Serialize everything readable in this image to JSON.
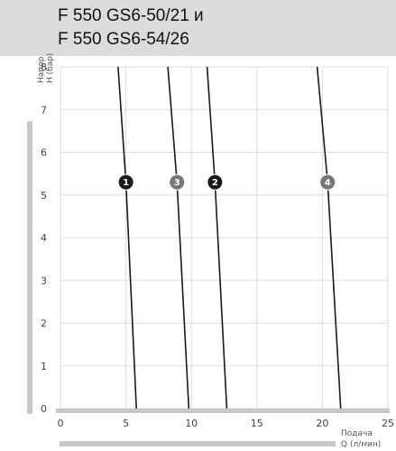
{
  "header": {
    "title_line1": "F 550 GS6-50/21 и",
    "title_line2": "F 550 GS6-54/26"
  },
  "chart_data": {
    "type": "line",
    "ylabel_line1": "Напор",
    "ylabel_line2": "H (бар)",
    "xlabel_line1": "Подача",
    "xlabel_line2": "Q (л/мин)",
    "xlim": [
      0,
      25
    ],
    "ylim": [
      0,
      8
    ],
    "x_ticks": [
      0,
      5,
      10,
      15,
      20,
      25
    ],
    "y_ticks": [
      0,
      1,
      2,
      3,
      4,
      5,
      6,
      7,
      8
    ],
    "grid": true,
    "series": [
      {
        "label": "1",
        "marker_color": "#1a1a1a",
        "points": [
          [
            4.4,
            8
          ],
          [
            5.0,
            5.3
          ],
          [
            5.8,
            0
          ]
        ]
      },
      {
        "label": "3",
        "marker_color": "#777777",
        "points": [
          [
            8.2,
            8
          ],
          [
            8.9,
            5.3
          ],
          [
            9.8,
            0
          ]
        ]
      },
      {
        "label": "2",
        "marker_color": "#1a1a1a",
        "points": [
          [
            11.2,
            8
          ],
          [
            11.8,
            5.3
          ],
          [
            12.7,
            0
          ]
        ]
      },
      {
        "label": "4",
        "marker_color": "#777777",
        "points": [
          [
            19.6,
            8
          ],
          [
            20.4,
            5.3
          ],
          [
            21.4,
            0
          ]
        ]
      }
    ],
    "marker_y": 5.3,
    "colors": {
      "grid": "#dddddd",
      "axis_band": "#c8c8c8",
      "curve": "#1a1a1a"
    }
  }
}
